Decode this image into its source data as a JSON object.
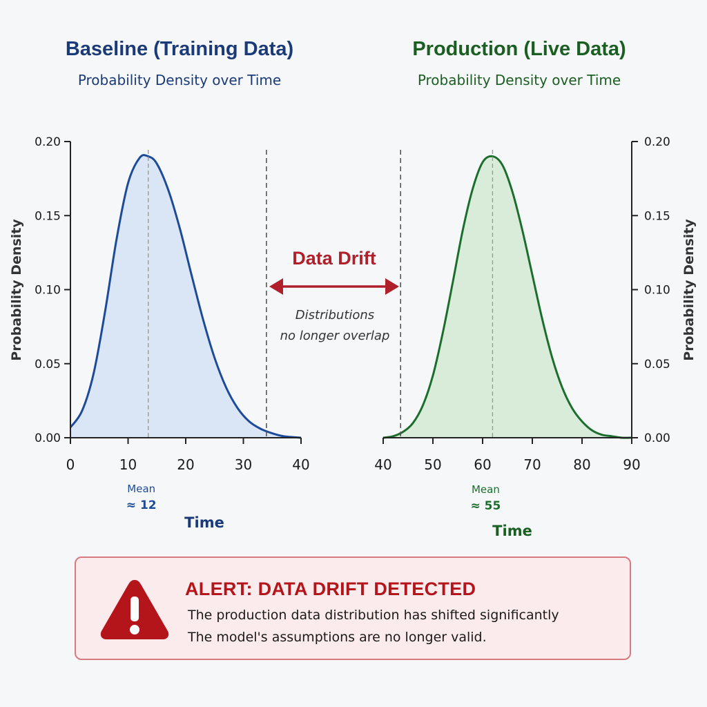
{
  "chart_data": {
    "type": "area",
    "panels": [
      {
        "title": "Baseline (Training Data)",
        "subtitle": "Probability Density over Time",
        "xlabel": "Time",
        "ylabel": "Probability Density",
        "xlim": [
          0,
          40
        ],
        "ylim": [
          0,
          0.2
        ],
        "xticks": [
          0,
          10,
          20,
          30,
          40
        ],
        "yticks": [
          "0.00",
          "0.05",
          "0.10",
          "0.15",
          "0.20"
        ],
        "curve": {
          "x": [
            0,
            2,
            4,
            6,
            8,
            10,
            12,
            13.5,
            15,
            17,
            19,
            21,
            23,
            25,
            27,
            29,
            31,
            33,
            35,
            37,
            40
          ],
          "y": [
            0.007,
            0.018,
            0.043,
            0.085,
            0.134,
            0.172,
            0.189,
            0.19,
            0.185,
            0.167,
            0.141,
            0.11,
            0.08,
            0.054,
            0.034,
            0.02,
            0.011,
            0.006,
            0.003,
            0.001,
            0.0
          ]
        },
        "mean_marker": {
          "x": 13.5,
          "label": "Mean",
          "value_label": "≈ 12"
        },
        "boundary_x": 34,
        "color": "#1d4a99",
        "fill": "#dae6f5"
      },
      {
        "title": "Production (Live Data)",
        "subtitle": "Probability Density over Time",
        "xlabel": "Time",
        "ylabel": "Probability Density",
        "xlim": [
          40,
          90
        ],
        "ylim": [
          0,
          0.2
        ],
        "xticks": [
          40,
          50,
          60,
          70,
          80,
          90
        ],
        "yticks": [
          "0.00",
          "0.05",
          "0.10",
          "0.15",
          "0.20"
        ],
        "curve": {
          "x": [
            40,
            42,
            44,
            46,
            48,
            50,
            52,
            54,
            56,
            58,
            60,
            62,
            64,
            66,
            68,
            70,
            72,
            74,
            76,
            78,
            80,
            82,
            84,
            86,
            88,
            90
          ],
          "y": [
            0.0,
            0.001,
            0.004,
            0.01,
            0.022,
            0.042,
            0.071,
            0.105,
            0.14,
            0.168,
            0.186,
            0.19,
            0.184,
            0.166,
            0.14,
            0.11,
            0.08,
            0.054,
            0.034,
            0.02,
            0.011,
            0.005,
            0.002,
            0.001,
            0.0,
            0.0
          ]
        },
        "mean_marker": {
          "x": 62,
          "label": "Mean",
          "value_label": "≈ 55"
        },
        "boundary_x": 43.5,
        "color": "#1b6e2c",
        "fill": "#d9ecd9"
      }
    ],
    "annotation": {
      "label": "Data Drift",
      "note_line1": "Distributions",
      "note_line2": "no longer overlap",
      "color": "#b0202a"
    }
  },
  "alert": {
    "title": "ALERT: DATA DRIFT DETECTED",
    "line1": "The production data distribution has shifted significantly",
    "line2": "The model's assumptions are no longer valid.",
    "icon": "warning-triangle-icon",
    "color": "#b3151b"
  }
}
